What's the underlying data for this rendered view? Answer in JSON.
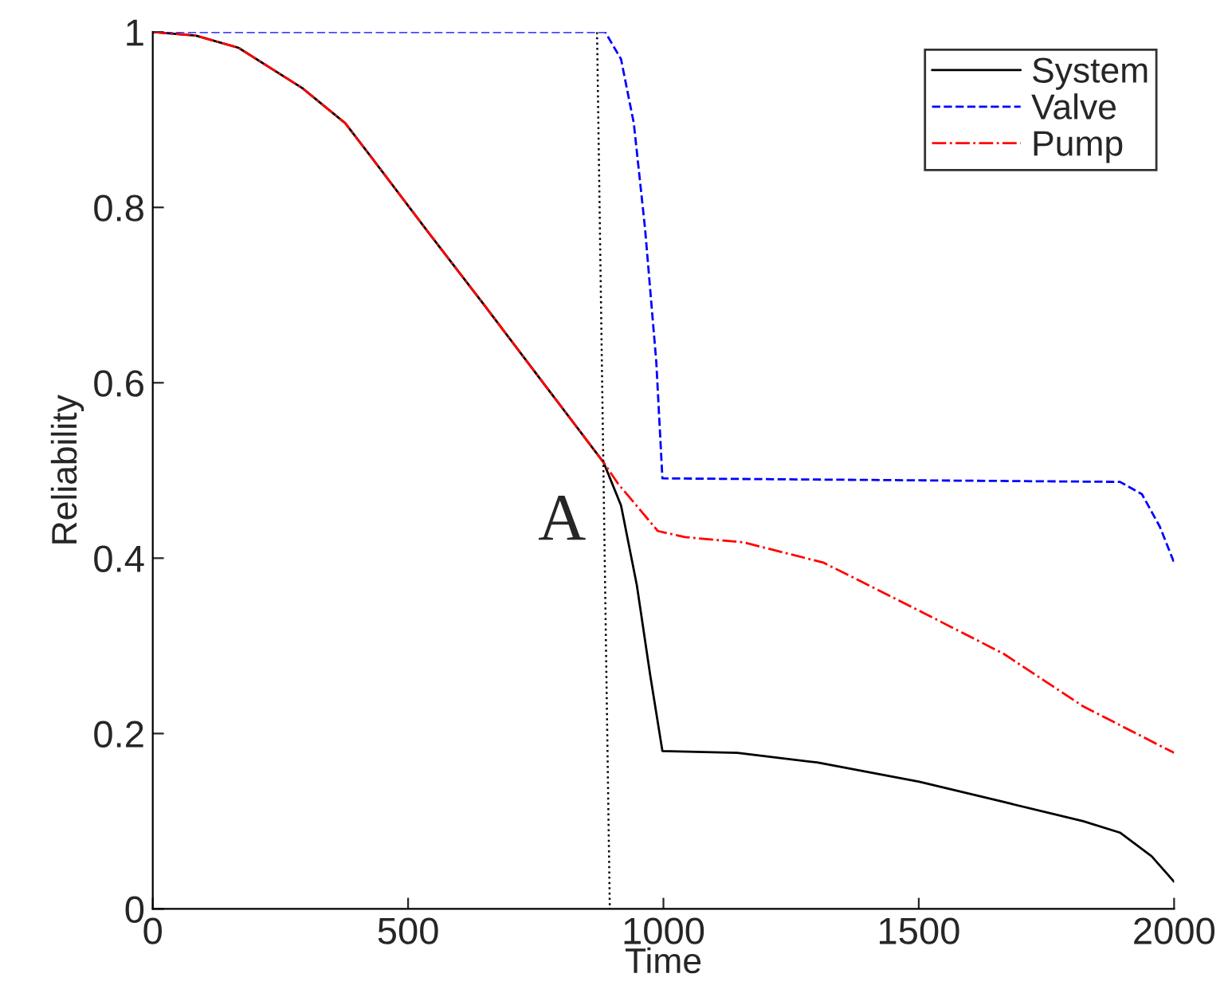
{
  "chart_data": {
    "type": "line",
    "xlabel": "Time",
    "ylabel": "Reliability",
    "xlim": [
      0,
      2000
    ],
    "ylim": [
      0,
      1
    ],
    "xticks": [
      0,
      500,
      1000,
      1500,
      2000
    ],
    "yticks": [
      0,
      0.2,
      0.4,
      0.6,
      0.8,
      1
    ],
    "grid": false,
    "legend": "top right",
    "annotations": [
      {
        "text": "A",
        "x": 883,
        "y": 0.509
      }
    ],
    "series": [
      {
        "name": "System",
        "color": "#000000",
        "line_style": "solid",
        "x": [
          0,
          84,
          168,
          293,
          377,
          427,
          543,
          646,
          771,
          883,
          917,
          948,
          974,
          998,
          1145,
          1301,
          1501,
          1666,
          1822,
          1894,
          1956,
          2000
        ],
        "values": [
          1,
          0.996,
          0.982,
          0.936,
          0.896,
          0.858,
          0.769,
          0.691,
          0.595,
          0.509,
          0.46,
          0.369,
          0.267,
          0.18,
          0.178,
          0.167,
          0.145,
          0.122,
          0.1,
          0.087,
          0.06,
          0.031
        ]
      },
      {
        "name": "Valve",
        "color": "#0000ff",
        "line_style": "dashed",
        "x": [
          0,
          886,
          917,
          942,
          964,
          986,
          998,
          1894,
          1937,
          1972,
          2000
        ],
        "values": [
          1,
          1,
          0.969,
          0.896,
          0.776,
          0.624,
          0.491,
          0.487,
          0.473,
          0.436,
          0.395
        ]
      },
      {
        "name": "Pump",
        "color": "#ff0000",
        "line_style": "dashdot",
        "x": [
          0,
          84,
          168,
          293,
          377,
          427,
          543,
          646,
          771,
          883,
          911,
          989,
          1042,
          1157,
          1313,
          1501,
          1666,
          1822,
          2000
        ],
        "values": [
          1,
          0.996,
          0.982,
          0.936,
          0.896,
          0.858,
          0.769,
          0.691,
          0.595,
          0.509,
          0.485,
          0.431,
          0.424,
          0.418,
          0.395,
          0.34,
          0.291,
          0.231,
          0.178
        ]
      },
      {
        "color": "#000000",
        "line_style": "dotted",
        "x": [
          870,
          895
        ],
        "values": [
          1,
          0
        ]
      }
    ]
  }
}
